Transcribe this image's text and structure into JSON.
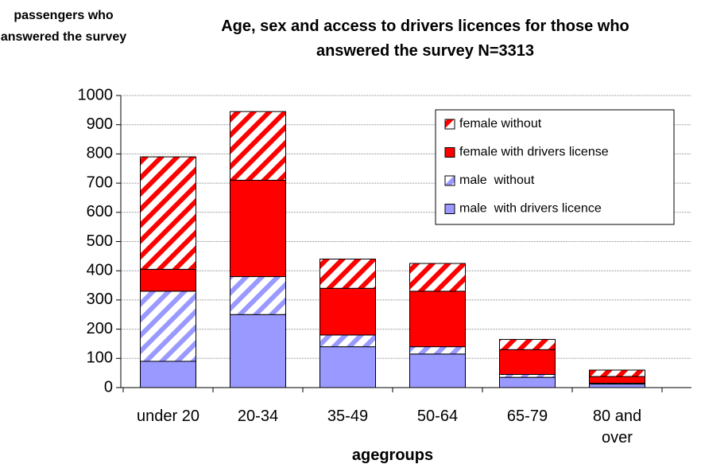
{
  "chart_data": {
    "type": "stacked-bar",
    "title": "Age, sex and access to drivers licences for those who answered the survey N=3313",
    "y_label": "passengers who answered the survey",
    "x_label": "agegroups",
    "categories": [
      "under 20",
      "20-34",
      "35-49",
      "50-64",
      "65-79",
      "80 and over"
    ],
    "series": [
      {
        "name": "male  with drivers licence",
        "color": "#9999ff",
        "hatched": false,
        "values": [
          90,
          250,
          140,
          115,
          35,
          12
        ]
      },
      {
        "name": "male  without",
        "color": "#9999ff",
        "hatched": true,
        "values": [
          240,
          130,
          40,
          25,
          10,
          3
        ]
      },
      {
        "name": "female with drivers license",
        "color": "#ff0000",
        "hatched": false,
        "values": [
          75,
          330,
          160,
          190,
          85,
          23
        ]
      },
      {
        "name": "female without",
        "color": "#ff0000",
        "hatched": true,
        "values": [
          385,
          235,
          100,
          95,
          35,
          22
        ]
      }
    ],
    "ylim": [
      0,
      1000
    ],
    "yticks": [
      0,
      100,
      200,
      300,
      400,
      500,
      600,
      700,
      800,
      900,
      1000
    ],
    "grid": true,
    "legend": "top-right"
  }
}
